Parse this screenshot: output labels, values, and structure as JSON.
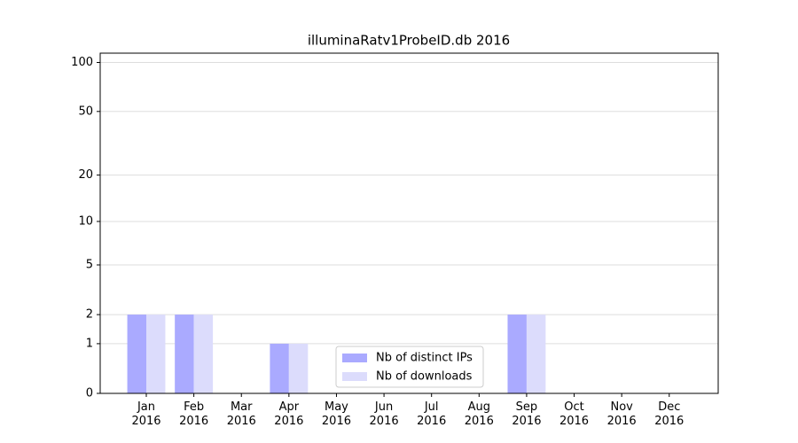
{
  "chart_data": {
    "type": "bar",
    "title": "illuminaRatv1ProbeID.db 2016",
    "categories": [
      "Jan 2016",
      "Feb 2016",
      "Mar 2016",
      "Apr 2016",
      "May 2016",
      "Jun 2016",
      "Jul 2016",
      "Aug 2016",
      "Sep 2016",
      "Oct 2016",
      "Nov 2016",
      "Dec 2016"
    ],
    "series": [
      {
        "name": "Nb of distinct IPs",
        "color": "#aaaaff",
        "values": [
          2,
          2,
          0,
          1,
          0,
          0,
          0,
          0,
          2,
          0,
          0,
          0
        ]
      },
      {
        "name": "Nb of downloads",
        "color": "#dcdcfc",
        "values": [
          2,
          2,
          0,
          1,
          0,
          0,
          0,
          0,
          2,
          0,
          0,
          0
        ]
      }
    ],
    "yscale": "log1p",
    "ylim": [
      0,
      114
    ],
    "yticks": [
      0,
      1,
      2,
      5,
      10,
      20,
      50,
      100
    ],
    "grid": true,
    "legend": "lower center"
  }
}
